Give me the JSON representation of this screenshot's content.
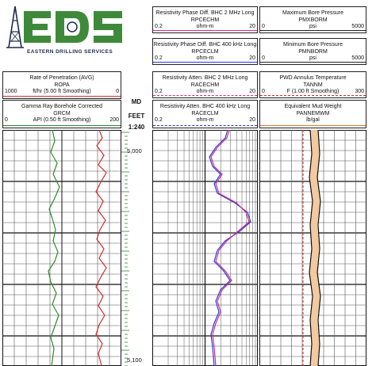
{
  "logo": {
    "letters": "EDS",
    "company": "EASTERN DRILLING SERVICES",
    "color_green": "#3f8a3a",
    "color_navy": "#1d2a4a"
  },
  "depth_column": {
    "md": "MD",
    "feet": "FEET",
    "scale": "1:240",
    "depth_top": "5,000",
    "depth_bottom": "5,100"
  },
  "headers": {
    "rop": {
      "title": "Rate of Penetration (AVG)",
      "mnemonic": "ROPA",
      "min": "1000",
      "units": "ft/hr (5.00 ft Smoothing)",
      "max": "0",
      "color": "#d62b2b"
    },
    "gr": {
      "title": "Gamma Ray Borehole Corrected",
      "mnemonic": "GRCM",
      "min": "0",
      "units": "API (0.50 ft Smoothing)",
      "max": "200",
      "color": "#2b8a2b"
    },
    "rpcechm": {
      "title": "Resistivity Phase Diff. BHC 2 MHz Long",
      "mnemonic": "RPCECHM",
      "min": "0.2",
      "units": "ohm-m",
      "max": "20",
      "color": "#d62b8a"
    },
    "rpceclm": {
      "title": "Resistivity Phase Diff. BHC 400 kHz Long",
      "mnemonic": "RPCECLM",
      "min": "0.2",
      "units": "ohm-m",
      "max": "20",
      "color": "#2b3ad6"
    },
    "racechm": {
      "title": "Resistivity Atten. BHC 2 MHz Long",
      "mnemonic": "RACECHM",
      "min": "0.2",
      "units": "ohm-m",
      "max": "20",
      "color": "#d62b8a"
    },
    "raceclm": {
      "title": "Resistivity Atten. BHC 400 kHz Long",
      "mnemonic": "RACECLM",
      "min": "0.2",
      "units": "ohm-m",
      "max": "20",
      "color": "#2b3ad6"
    },
    "pmxborm": {
      "title": "Maximum Bore Pressure",
      "mnemonic": "PMXBORM",
      "min": "0",
      "units": "psi",
      "max": "5000",
      "color": "#222222"
    },
    "pmnborm": {
      "title": "Minimum Bore Pressure",
      "mnemonic": "PMNBORM",
      "min": "0",
      "units": "psi",
      "max": "5000",
      "color": "#222222"
    },
    "tannm": {
      "title": "PWD Annulus Temperature",
      "mnemonic": "TANNM",
      "min": "0",
      "units": "F (1.00 ft Smoothing)",
      "max": "300",
      "color": "#d62b2b"
    },
    "pannemwm": {
      "title": "Equivalent Mud Weight",
      "mnemonic": "PANNEMWM",
      "min": "",
      "units": "lb/gal",
      "max": "",
      "color": "#e07b2b"
    }
  },
  "colors": {
    "grid": "#111111",
    "grid_minor": "#555555",
    "tick_green": "#2b8a2b"
  }
}
